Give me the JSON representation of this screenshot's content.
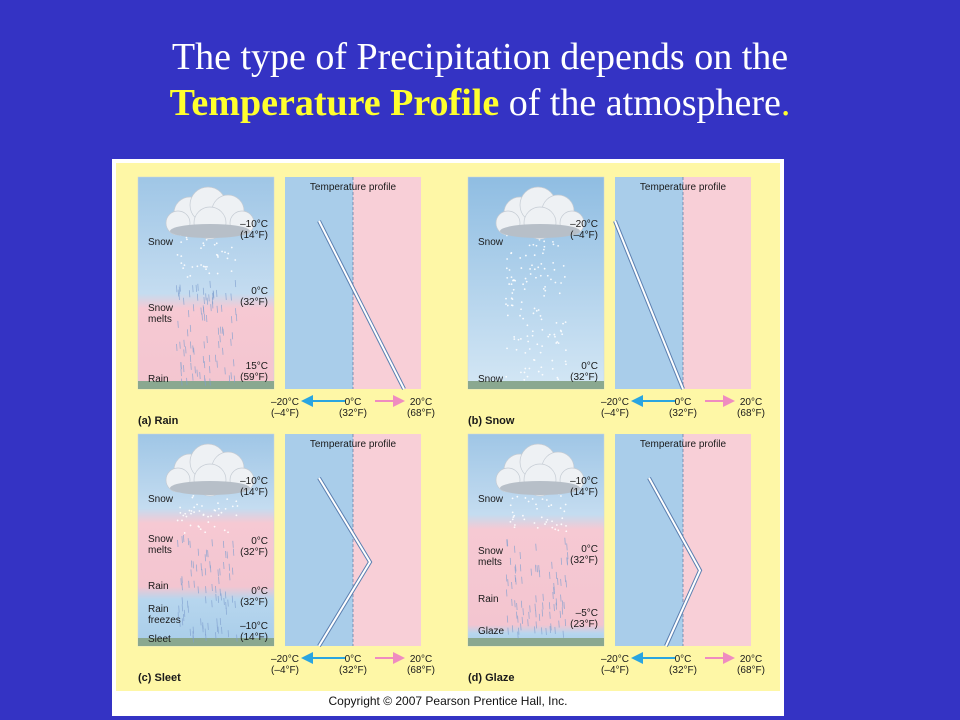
{
  "slide": {
    "title_line1": "The type of Precipitation depends on the",
    "title_highlight": "Temperature Profile",
    "title_rest": " of the atmosphere",
    "title_period": "."
  },
  "colors": {
    "background": "#3433c4",
    "highlight": "#ffff2e",
    "panel": "#fef7a6",
    "cold": "#a9cdea",
    "warm": "#f8cfd7"
  },
  "figure": {
    "copyright": "Copyright © 2007 Pearson Prentice Hall, Inc.",
    "profile_title": "Temperature profile",
    "axis": {
      "left": "–20°C",
      "left_f": "(–4°F)",
      "mid": "0°C",
      "mid_f": "(32°F)",
      "right": "20°C",
      "right_f": "(68°F)"
    },
    "panels": [
      {
        "id": "rain",
        "caption": "(a) Rain",
        "layers": [
          {
            "label": "Snow",
            "temp_c": "–10°C",
            "temp_f": "(14°F)"
          },
          {
            "label": "Snow\nmelts",
            "temp_c": "0°C",
            "temp_f": "(32°F)"
          },
          {
            "label": "Rain",
            "temp_c": "15°C",
            "temp_f": "(59°F)"
          }
        ],
        "profile_c": [
          [
            -10,
            0
          ],
          [
            15,
            1
          ]
        ]
      },
      {
        "id": "snow",
        "caption": "(b) Snow",
        "layers": [
          {
            "label": "Snow",
            "temp_c": "–20°C",
            "temp_f": "(–4°F)"
          },
          {
            "label": "Snow",
            "temp_c": "0°C",
            "temp_f": "(32°F)"
          }
        ],
        "profile_c": [
          [
            -20,
            0
          ],
          [
            0,
            1
          ]
        ]
      },
      {
        "id": "sleet",
        "caption": "(c) Sleet",
        "layers": [
          {
            "label": "Snow",
            "temp_c": "–10°C",
            "temp_f": "(14°F)"
          },
          {
            "label": "Snow\nmelts",
            "temp_c": "0°C",
            "temp_f": "(32°F)"
          },
          {
            "label": "Rain",
            "temp_c": "",
            "temp_f": ""
          },
          {
            "label": "Rain\nfreezes",
            "temp_c": "0°C",
            "temp_f": "(32°F)"
          },
          {
            "label": "Sleet",
            "temp_c": "–10°C",
            "temp_f": "(14°F)"
          }
        ],
        "profile_c": [
          [
            -10,
            0
          ],
          [
            5,
            0.5
          ],
          [
            -10,
            1
          ]
        ]
      },
      {
        "id": "glaze",
        "caption": "(d) Glaze",
        "layers": [
          {
            "label": "Snow",
            "temp_c": "–10°C",
            "temp_f": "(14°F)"
          },
          {
            "label": "Snow\nmelts",
            "temp_c": "0°C",
            "temp_f": "(32°F)"
          },
          {
            "label": "Rain",
            "temp_c": "0°C",
            "temp_f": "(32°F)"
          },
          {
            "label": "Glaze",
            "temp_c": "–5°C",
            "temp_f": "(23°F)"
          }
        ],
        "profile_c": [
          [
            -10,
            0
          ],
          [
            5,
            0.55
          ],
          [
            -5,
            1
          ]
        ]
      }
    ]
  }
}
